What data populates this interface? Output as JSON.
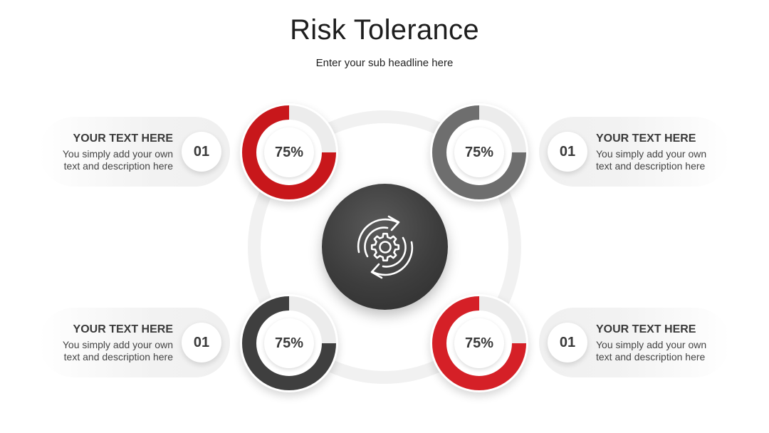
{
  "header": {
    "title": "Risk Tolerance",
    "subtitle": "Enter your sub headline here"
  },
  "center": {
    "icon": "gear-with-cycle-arrows-icon"
  },
  "items": [
    {
      "heading": "YOUR TEXT HERE",
      "desc1": "You simply add your own",
      "desc2": "text and description here",
      "number": "01",
      "percent_label": "75%",
      "percent": 75,
      "color": "#c8171b"
    },
    {
      "heading": "YOUR TEXT HERE",
      "desc1": "You simply add your own",
      "desc2": "text and description here",
      "number": "01",
      "percent_label": "75%",
      "percent": 75,
      "color": "#6e6e6e"
    },
    {
      "heading": "YOUR TEXT HERE",
      "desc1": "You simply add your own",
      "desc2": "text and description here",
      "number": "01",
      "percent_label": "75%",
      "percent": 75,
      "color": "#3f3f3f"
    },
    {
      "heading": "YOUR TEXT HERE",
      "desc1": "You simply add your own",
      "desc2": "text and description here",
      "number": "01",
      "percent_label": "75%",
      "percent": 75,
      "color": "#d52027"
    }
  ],
  "colors": {
    "track": "#ececec",
    "ring": "#f1f1f1"
  }
}
